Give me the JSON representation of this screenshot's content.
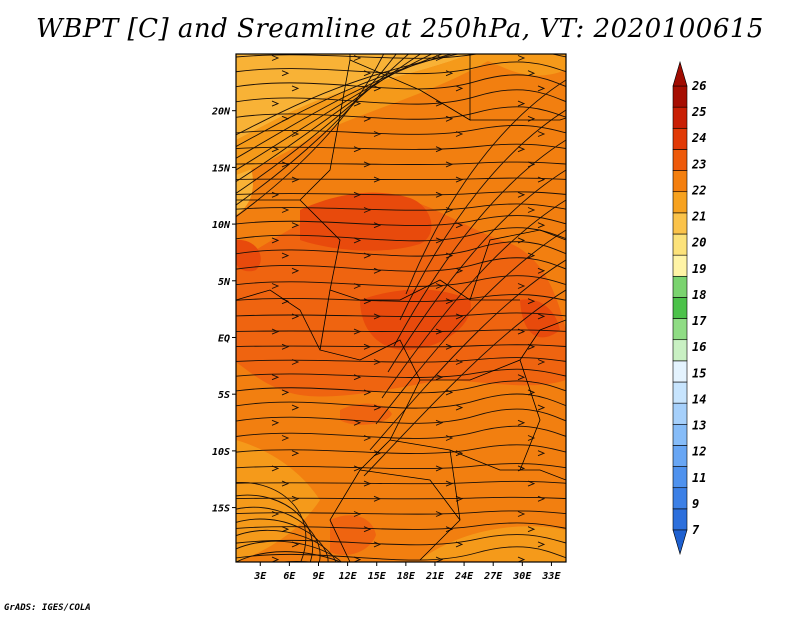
{
  "title": "WBPT [C] and Sreamline at 250hPa, VT: 2020100615",
  "credit": "GrADS: IGES/COLA",
  "map": {
    "lon_labels": [
      "3E",
      "6E",
      "9E",
      "12E",
      "15E",
      "18E",
      "21E",
      "24E",
      "27E",
      "30E",
      "33E"
    ],
    "lon_values": [
      3,
      6,
      9,
      12,
      15,
      18,
      21,
      24,
      27,
      30,
      33
    ],
    "lat_labels": [
      "20N",
      "15N",
      "10N",
      "5N",
      "EQ",
      "5S",
      "10S",
      "15S"
    ],
    "lat_values": [
      20,
      15,
      10,
      5,
      0,
      -5,
      -10,
      -15
    ],
    "lon_range": [
      0.5,
      34.5
    ],
    "lat_range": [
      -19.8,
      25
    ]
  },
  "colorbar": {
    "labels": [
      "7",
      "9",
      "11",
      "12",
      "13",
      "14",
      "15",
      "16",
      "17",
      "18",
      "19",
      "20",
      "21",
      "22",
      "23",
      "24",
      "25",
      "26"
    ],
    "colors": [
      "#2c6fdc",
      "#3c80e6",
      "#4f92ee",
      "#68a6f4",
      "#86bcf8",
      "#a6d0fb",
      "#c7e4fd",
      "#e4f3fe",
      "#c9f0c3",
      "#8fdc84",
      "#4cc24a",
      "#7ad36f",
      "#fff4a6",
      "#fce27a",
      "#fbc34a",
      "#f7a21f",
      "#f47f0e",
      "#ee5a0a",
      "#e13a06",
      "#c91f04",
      "#a60e02"
    ],
    "lower_arrow_color": "#1e60d0",
    "upper_arrow_color": "#a00c02"
  },
  "field_colors": {
    "c20_21": "#f8b236",
    "c21_22": "#f59a1a",
    "c22_23": "#f27f10",
    "c23_24": "#ef6410",
    "c24_25": "#e84a0c"
  }
}
